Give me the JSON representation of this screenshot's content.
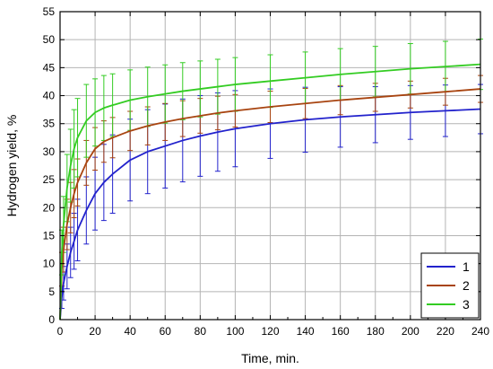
{
  "chart_data": {
    "type": "line",
    "xlabel": "Time, min.",
    "ylabel": "Hydrogen yield, %",
    "xlim": [
      0,
      240
    ],
    "ylim": [
      0,
      55
    ],
    "x_ticks": [
      "0",
      "20",
      "40",
      "60",
      "80",
      "100",
      "120",
      "140",
      "160",
      "180",
      "200",
      "220",
      "240"
    ],
    "y_ticks": [
      "0",
      "5",
      "10",
      "15",
      "20",
      "25",
      "30",
      "35",
      "40",
      "45",
      "50",
      "55"
    ],
    "grid": true,
    "legend": {
      "position": "bottom-right"
    },
    "series": [
      {
        "name": "1",
        "color": "#2222cc",
        "x": [
          0,
          1,
          2,
          4,
          6,
          8,
          10,
          15,
          20,
          25,
          30,
          40,
          50,
          60,
          70,
          80,
          90,
          100,
          120,
          140,
          160,
          180,
          200,
          220,
          240
        ],
        "y": [
          0,
          4,
          6.5,
          9.5,
          12,
          14,
          16,
          19.5,
          22.5,
          24.5,
          26,
          28.5,
          30,
          31,
          32,
          32.8,
          33.5,
          34.1,
          35,
          35.7,
          36.2,
          36.6,
          37,
          37.3,
          37.6
        ],
        "error": [
          0,
          2,
          3,
          4,
          4.5,
          5,
          5.5,
          6,
          6.5,
          6.8,
          7,
          7.3,
          7.5,
          7.5,
          7.4,
          7.2,
          7.0,
          6.8,
          6.2,
          5.8,
          5.4,
          5.0,
          4.8,
          4.6,
          4.4
        ]
      },
      {
        "name": "2",
        "color": "#a84410",
        "x": [
          0,
          1,
          2,
          4,
          6,
          8,
          10,
          15,
          20,
          25,
          30,
          40,
          50,
          60,
          70,
          80,
          90,
          100,
          120,
          140,
          160,
          180,
          200,
          220,
          240
        ],
        "y": [
          0,
          9,
          12.5,
          17,
          20,
          22.5,
          24.5,
          28,
          30.5,
          31.8,
          32.5,
          33.7,
          34.6,
          35.3,
          35.9,
          36.4,
          36.9,
          37.3,
          38,
          38.6,
          39.2,
          39.7,
          40.2,
          40.7,
          41.2
        ],
        "error": [
          0,
          3,
          4,
          4.5,
          4.5,
          4.3,
          4.2,
          4.0,
          3.8,
          3.7,
          3.6,
          3.5,
          3.4,
          3.3,
          3.2,
          3.1,
          3.0,
          2.9,
          2.8,
          2.7,
          2.6,
          2.5,
          2.4,
          2.4,
          2.4
        ]
      },
      {
        "name": "3",
        "color": "#33cc22",
        "x": [
          0,
          1,
          2,
          4,
          6,
          8,
          10,
          15,
          20,
          25,
          30,
          40,
          50,
          60,
          70,
          80,
          90,
          100,
          120,
          140,
          160,
          180,
          200,
          220,
          240
        ],
        "y": [
          0,
          12,
          17,
          23.5,
          27.5,
          30.5,
          32.5,
          35.5,
          37,
          37.8,
          38.3,
          39.2,
          39.8,
          40.3,
          40.8,
          41.2,
          41.6,
          42,
          42.6,
          43.2,
          43.8,
          44.3,
          44.8,
          45.2,
          45.6
        ],
        "error": [
          0,
          4,
          5,
          6,
          6.5,
          7,
          7,
          6.5,
          6,
          5.8,
          5.6,
          5.4,
          5.3,
          5.2,
          5.1,
          5.0,
          4.9,
          4.8,
          4.7,
          4.6,
          4.6,
          4.5,
          4.5,
          4.5,
          4.5
        ]
      }
    ]
  }
}
